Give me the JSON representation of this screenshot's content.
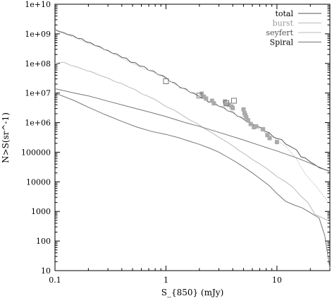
{
  "chart_data": {
    "type": "line",
    "title": "",
    "xlabel": "S_{850} (mJy)",
    "ylabel": "N>S(sr^-1)",
    "xscale": "log",
    "yscale": "log",
    "xlim": [
      0.1,
      30
    ],
    "ylim": [
      10,
      10000000000
    ],
    "x_ticks": [
      {
        "value": 0.1,
        "label": "0.1"
      },
      {
        "value": 1,
        "label": "1"
      },
      {
        "value": 10,
        "label": "10"
      }
    ],
    "y_ticks": [
      {
        "value": 10,
        "label": "10"
      },
      {
        "value": 100,
        "label": "100"
      },
      {
        "value": 1000,
        "label": "1000"
      },
      {
        "value": 10000,
        "label": "10000"
      },
      {
        "value": 100000,
        "label": "100000"
      },
      {
        "value": 1000000,
        "label": "1e+06"
      },
      {
        "value": 10000000,
        "label": "1e+07"
      },
      {
        "value": 100000000,
        "label": "1e+08"
      },
      {
        "value": 1000000000,
        "label": "1e+09"
      },
      {
        "value": 10000000000,
        "label": "1e+10"
      }
    ],
    "grid": false,
    "legend_position": "top-right",
    "series": [
      {
        "name": "total",
        "color": "#555555",
        "style": "solid",
        "x": [
          0.1,
          0.11,
          0.12,
          0.13,
          0.145,
          0.16,
          0.175,
          0.19,
          0.21,
          0.23,
          0.25,
          0.28,
          0.3,
          0.33,
          0.36,
          0.4,
          0.44,
          0.48,
          0.53,
          0.58,
          0.64,
          0.7,
          0.77,
          0.85,
          0.93,
          1.0,
          1.1,
          1.2,
          1.35,
          1.5,
          1.65,
          1.8,
          2.0,
          2.2,
          2.4,
          2.7,
          3.0,
          3.3,
          3.6,
          4.0,
          4.4,
          4.8,
          5.3,
          5.8,
          6.4,
          7.0,
          7.7,
          8.5,
          9.3,
          10,
          11,
          12,
          13.5,
          15,
          16.5,
          18,
          20,
          22,
          24,
          27,
          30
        ],
        "y": [
          1400000000,
          1200000000,
          1100000000,
          950000000,
          880000000,
          700000000,
          680000000,
          540000000,
          500000000,
          400000000,
          380000000,
          290000000,
          275000000,
          220000000,
          210000000,
          160000000,
          150000000,
          110000000,
          105000000,
          82000000,
          78000000,
          58000000,
          56000000,
          42000000,
          39000000,
          33000000,
          24000000,
          22000000,
          15000000,
          14000000,
          10500000,
          9800000,
          7600000,
          6800000,
          5000000,
          4700000,
          3600000,
          3300000,
          2500000,
          2300000,
          1650000,
          1500000,
          1100000,
          1000000,
          760000,
          700000,
          520000,
          460000,
          330000,
          290000,
          270000,
          190000,
          150000,
          120000,
          70000,
          64000,
          47000,
          38000,
          30000,
          26000,
          23000
        ]
      },
      {
        "name": "burst",
        "color": "#bbbbbb",
        "style": "dotted",
        "x": [
          0.1,
          0.13,
          0.16,
          0.2,
          0.25,
          0.3,
          0.4,
          0.5,
          0.6,
          0.8,
          1.0,
          1.2,
          1.5,
          1.8,
          2.2,
          2.7,
          3.3,
          4.0,
          4.8,
          5.8,
          7.0,
          8.5,
          10,
          12,
          15,
          18,
          22,
          26,
          30
        ],
        "y": [
          1300000000,
          920000000,
          680000000,
          480000000,
          350000000,
          260000000,
          150000000,
          100000000,
          72000000,
          48000000,
          31000000,
          20000000,
          13000000,
          9000000,
          6300000,
          4300000,
          3000000,
          2100000,
          1400000,
          880000,
          580000,
          380000,
          250000,
          160000,
          60000,
          18000,
          8000,
          3500,
          1800
        ]
      },
      {
        "name": "seyfert",
        "color": "#bbbbbb",
        "style": "solid",
        "x": [
          0.1,
          0.12,
          0.14,
          0.16,
          0.19,
          0.22,
          0.26,
          0.3,
          0.35,
          0.4,
          0.46,
          0.53,
          0.6,
          0.7,
          0.8,
          0.92,
          1.0,
          1.2,
          1.4,
          1.6,
          1.9,
          2.2,
          2.6,
          3.0,
          3.5,
          4.0,
          4.6,
          5.3,
          6.0,
          7.0,
          8.0,
          9.2,
          10,
          12,
          14,
          16,
          19,
          22,
          26,
          30
        ],
        "y": [
          100000000,
          110000000,
          85000000,
          75000000,
          58000000,
          50000000,
          38000000,
          32000000,
          24000000,
          21000000,
          16000000,
          13000000,
          9500000,
          7600000,
          6000000,
          4300000,
          3500000,
          2600000,
          1800000,
          1300000,
          940000,
          650000,
          450000,
          320000,
          230000,
          165000,
          112000,
          80000,
          57000,
          40000,
          29000,
          19500,
          15000,
          10000,
          6500,
          3600,
          2000,
          800,
          600,
          450
        ]
      },
      {
        "name": "Spiral",
        "color": "#777777",
        "style": "solid",
        "x": [
          0.1,
          0.15,
          0.2,
          0.3,
          0.5,
          0.7,
          1.0,
          1.5,
          2.0,
          3.0,
          5.0,
          7.0,
          10,
          15,
          20,
          30
        ],
        "y": [
          14000000,
          10000000,
          8000000,
          5300000,
          3200000,
          2300000,
          1600000,
          1000000,
          750000,
          470000,
          260000,
          170000,
          110000,
          65000,
          42000,
          22000
        ]
      },
      {
        "name": "Spiral_dropoff",
        "color": "#777777",
        "style": "solid",
        "x": [
          0.1,
          0.15,
          0.2,
          0.28,
          0.4,
          0.55,
          0.75,
          1.0,
          1.3,
          1.6,
          2.0,
          2.5,
          3.0,
          3.6,
          4.3,
          5.0,
          6.0,
          7.0,
          8.5,
          10,
          12,
          14,
          17,
          20,
          24,
          27,
          30
        ],
        "y": [
          10000000,
          5500000,
          3300000,
          1900000,
          1100000,
          700000,
          500000,
          400000,
          310000,
          240000,
          185000,
          135000,
          100000,
          68000,
          46000,
          32000,
          20000,
          13000,
          7500,
          4000,
          2200,
          1700,
          1300,
          900,
          600,
          150,
          12
        ]
      }
    ],
    "legend": [
      {
        "label": "total",
        "color": "#555555",
        "label_color": "#000000"
      },
      {
        "label": "burst",
        "color": "#bbbbbb",
        "label_color": "#999999"
      },
      {
        "label": "seyfert",
        "color": "#bbbbbb",
        "label_color": "#555555"
      },
      {
        "label": "Spiral",
        "color": "#777777",
        "label_color": "#000000"
      }
    ],
    "observations_filled": {
      "color": "#aaaaaa",
      "points": [
        [
          2.1,
          9500000
        ],
        [
          2.2,
          7500000
        ],
        [
          2.3,
          6500000
        ],
        [
          2.6,
          5500000
        ],
        [
          2.7,
          4500000
        ],
        [
          3.4,
          5200000
        ],
        [
          3.5,
          4200000
        ],
        [
          3.7,
          4000000
        ],
        [
          3.9,
          3500000
        ],
        [
          4.0,
          3100000
        ],
        [
          5.0,
          2800000
        ],
        [
          5.1,
          2100000
        ],
        [
          5.2,
          1800000
        ],
        [
          5.3,
          1500000
        ],
        [
          5.5,
          1200000
        ],
        [
          5.8,
          900000
        ],
        [
          6.2,
          700000
        ],
        [
          6.5,
          750000
        ],
        [
          7.5,
          600000
        ],
        [
          8.2,
          380000
        ],
        [
          8.6,
          300000
        ],
        [
          10.0,
          220000
        ]
      ]
    },
    "observations_open": {
      "color": "#777777",
      "points": [
        [
          1.0,
          25000000
        ],
        [
          2.0,
          8200000
        ],
        [
          3.5,
          4600000
        ],
        [
          4.1,
          5500000
        ]
      ]
    }
  }
}
